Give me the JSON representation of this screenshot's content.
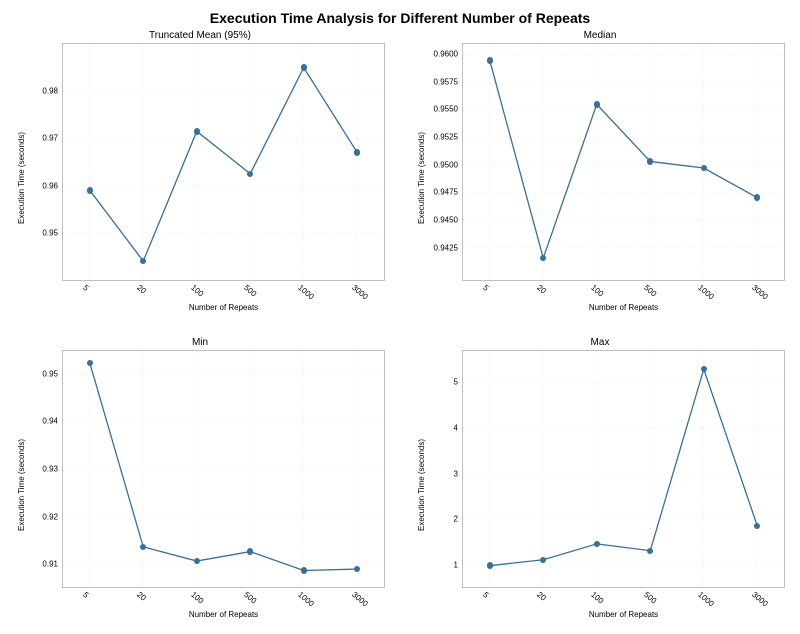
{
  "suptitle": "Execution Time Analysis for Different Number of Repeats",
  "common": {
    "xlabel": "Number of Repeats",
    "ylabel": "Execution Time (seconds)",
    "x_categories": [
      "5",
      "20",
      "100",
      "500",
      "1000",
      "3000"
    ],
    "series_color": "#3a6f9a",
    "grid_color": "#e8e8e8",
    "background_color": "#ffffff",
    "line_width": 1.3,
    "marker_style": "circle",
    "marker_size": 3.2,
    "xtick_rotation_deg": 40,
    "title_fontsize": 10,
    "label_fontsize": 8,
    "tick_fontsize": 8,
    "suptitle_fontsize": 14
  },
  "panels": [
    {
      "title": "Truncated Mean (95%)",
      "values": [
        0.959,
        0.944,
        0.9715,
        0.9625,
        0.985,
        0.967
      ],
      "ylim": [
        0.94,
        0.99
      ],
      "yticks": [
        0.95,
        0.96,
        0.97,
        0.98
      ]
    },
    {
      "title": "Median",
      "values": [
        0.9595,
        0.9415,
        0.9555,
        0.9503,
        0.9497,
        0.947
      ],
      "ylim": [
        0.9395,
        0.961
      ],
      "yticks": [
        0.9425,
        0.945,
        0.9475,
        0.95,
        0.9525,
        0.955,
        0.9575,
        0.96
      ]
    },
    {
      "title": "Min",
      "values": [
        0.9525,
        0.9135,
        0.9105,
        0.9125,
        0.9085,
        0.9088
      ],
      "ylim": [
        0.905,
        0.955
      ],
      "yticks": [
        0.91,
        0.92,
        0.93,
        0.94,
        0.95
      ]
    },
    {
      "title": "Max",
      "values": [
        0.97,
        1.1,
        1.45,
        1.3,
        5.3,
        1.85
      ],
      "ylim": [
        0.5,
        5.7
      ],
      "yticks": [
        1,
        2,
        3,
        4,
        5
      ]
    }
  ]
}
